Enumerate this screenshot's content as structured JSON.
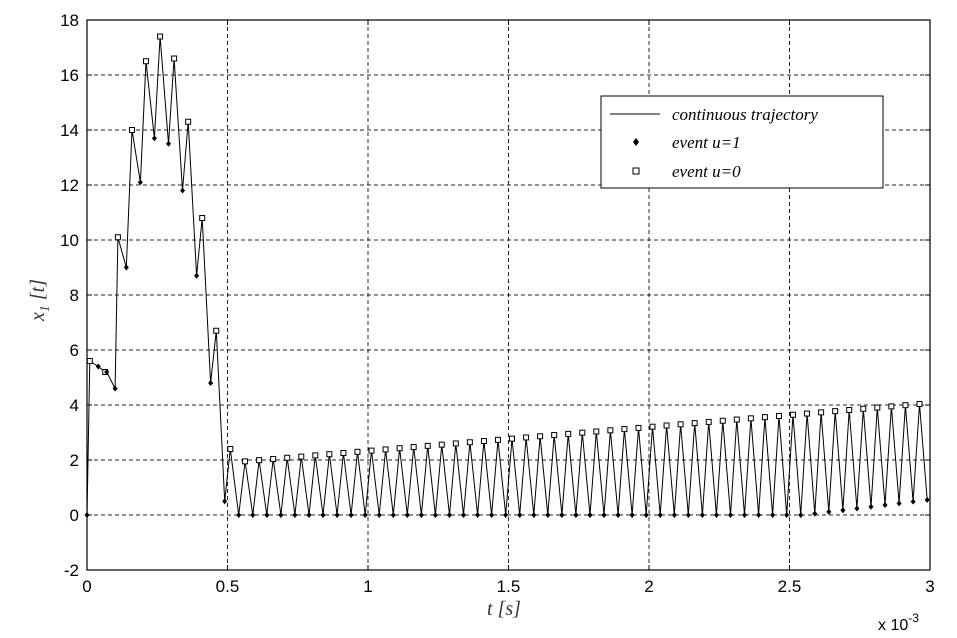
{
  "chart_data": {
    "type": "line",
    "xlabel": "t [s]",
    "ylabel_main": "x",
    "ylabel_sub": "1",
    "ylabel_rest": " [t]",
    "x_multiplier_base": "x 10",
    "x_multiplier_exp": "-3",
    "xlim": [
      0,
      3
    ],
    "ylim": [
      -2,
      18
    ],
    "x_ticks": [
      0,
      0.5,
      1,
      1.5,
      2,
      2.5,
      3
    ],
    "x_tick_labels": [
      "0",
      "0.5",
      "1",
      "1.5",
      "2",
      "2.5",
      "3"
    ],
    "y_ticks": [
      -2,
      0,
      2,
      4,
      6,
      8,
      10,
      12,
      14,
      16,
      18
    ],
    "y_tick_labels": [
      "-2",
      "0",
      "2",
      "4",
      "6",
      "8",
      "10",
      "12",
      "14",
      "16",
      "18"
    ],
    "grid": true,
    "legend_position": "upper-right",
    "legend": [
      {
        "label": "continuous trajectory",
        "marker": "line"
      },
      {
        "label": "event  u=1",
        "marker": "diamond"
      },
      {
        "label": "event  u=0",
        "marker": "square"
      }
    ],
    "early_phase": {
      "u1_events": [
        [
          0,
          0
        ],
        [
          0.04,
          5.4
        ],
        [
          0.07,
          5.2
        ],
        [
          0.1,
          4.6
        ],
        [
          0.14,
          9.0
        ],
        [
          0.19,
          12.1
        ],
        [
          0.24,
          13.7
        ],
        [
          0.29,
          13.5
        ],
        [
          0.34,
          11.8
        ],
        [
          0.39,
          8.7
        ],
        [
          0.44,
          4.8
        ],
        [
          0.49,
          0.5
        ]
      ],
      "u0_events": [
        [
          0.01,
          5.6
        ],
        [
          0.065,
          5.2
        ],
        [
          0.11,
          10.1
        ],
        [
          0.16,
          14.0
        ],
        [
          0.21,
          16.5
        ],
        [
          0.26,
          17.4
        ],
        [
          0.31,
          16.6
        ],
        [
          0.36,
          14.3
        ],
        [
          0.41,
          10.8
        ],
        [
          0.46,
          6.7
        ],
        [
          0.51,
          2.4
        ]
      ]
    },
    "periodic_phase": {
      "x_start": 0.54,
      "x_end": 2.99,
      "period": 0.05,
      "peak_start": 1.95,
      "peak_end": 4.08,
      "trough_start": 0.0,
      "trough_end": 0.55,
      "trough_rise_from": 2.55
    }
  }
}
